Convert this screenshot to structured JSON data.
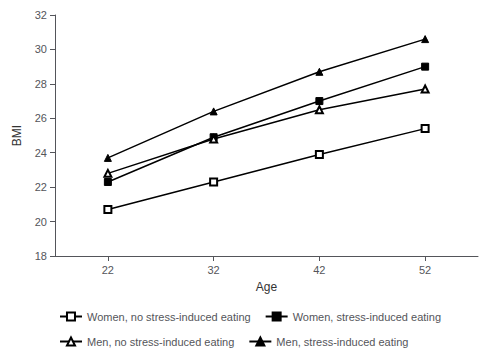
{
  "chart_data": {
    "type": "line",
    "xlabel": "Age",
    "ylabel": "BMI",
    "x": [
      22,
      32,
      42,
      52
    ],
    "series": [
      {
        "name": "Women, no stress-induced eating",
        "color": "#000000",
        "marker": "square-open",
        "values": [
          20.7,
          22.3,
          23.9,
          25.4
        ]
      },
      {
        "name": "Women, stress-induced eating",
        "color": "#000000",
        "marker": "square",
        "values": [
          22.3,
          24.9,
          27.0,
          29.0
        ]
      },
      {
        "name": "Men, no stress-induced eating",
        "color": "#000000",
        "marker": "triangle-open",
        "values": [
          22.8,
          24.8,
          26.5,
          27.7
        ]
      },
      {
        "name": "Men, stress-induced eating",
        "color": "#000000",
        "marker": "triangle",
        "values": [
          23.7,
          26.4,
          28.7,
          30.6
        ]
      }
    ],
    "xlim": [
      17,
      57
    ],
    "xticks": [
      22,
      32,
      42,
      52
    ],
    "ylim": [
      18,
      32
    ],
    "yticks": [
      18,
      20,
      22,
      24,
      26,
      28,
      30,
      32
    ],
    "grid": false,
    "legend": "bottom"
  }
}
